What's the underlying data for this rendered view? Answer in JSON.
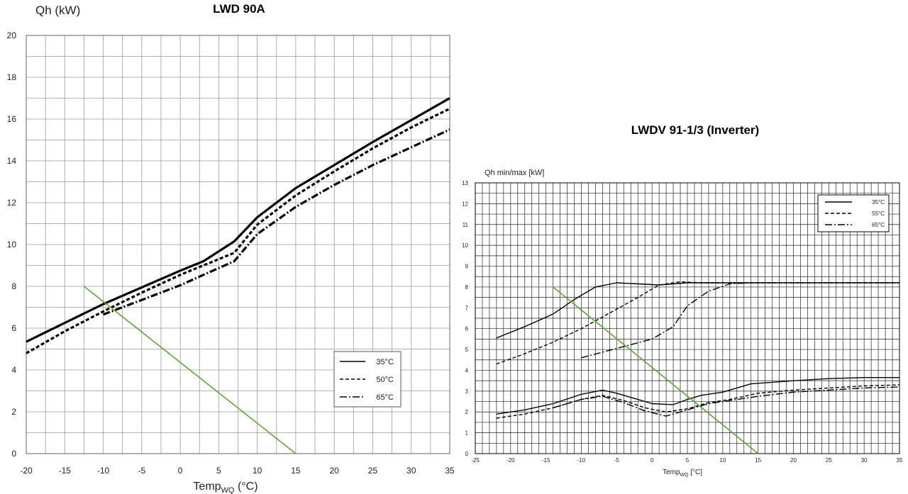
{
  "chart_data": [
    {
      "type": "line",
      "title": "LWD 90A",
      "ylabel": "Qh (kW)",
      "xlabel": "Temp",
      "xlabel_sub": "WQ",
      "xlabel_unit": "(°C)",
      "xlim": [
        -20,
        35
      ],
      "ylim": [
        0,
        20
      ],
      "xticks": [
        -20,
        -15,
        -10,
        -5,
        0,
        5,
        10,
        15,
        20,
        25,
        30,
        35
      ],
      "yticks": [
        0,
        2,
        4,
        6,
        8,
        10,
        12,
        14,
        16,
        18,
        20
      ],
      "grid": true,
      "legend_position": "bottom-right",
      "series": [
        {
          "name": "35°C",
          "style": "solid",
          "x": [
            -20,
            -15,
            -10,
            -5,
            0,
            3,
            7,
            10,
            15,
            20,
            25,
            30,
            35
          ],
          "y": [
            5.35,
            6.25,
            7.15,
            7.95,
            8.75,
            9.2,
            10.15,
            11.3,
            12.7,
            13.8,
            14.9,
            15.95,
            17.0
          ]
        },
        {
          "name": "50°C",
          "style": "dashed",
          "x": [
            -20,
            -15,
            -10,
            -5,
            0,
            3,
            7,
            10,
            15,
            20,
            25,
            30,
            35
          ],
          "y": [
            4.8,
            5.85,
            6.8,
            7.7,
            8.55,
            9.0,
            9.6,
            10.95,
            12.35,
            13.5,
            14.6,
            15.6,
            16.5
          ]
        },
        {
          "name": "65°C",
          "style": "dashdot",
          "x": [
            -10,
            -5,
            0,
            3,
            7,
            10,
            15,
            20,
            25,
            30,
            35
          ],
          "y": [
            6.65,
            7.35,
            8.05,
            8.55,
            9.2,
            10.5,
            11.8,
            12.85,
            13.8,
            14.65,
            15.5
          ]
        },
        {
          "name": "",
          "style": "green",
          "x": [
            -12.5,
            15
          ],
          "y": [
            8.0,
            0
          ]
        }
      ]
    },
    {
      "type": "line",
      "title": "LWDV 91-1/3 (Inverter)",
      "ylabel": "Qh min/max [kW]",
      "xlabel": "Temp",
      "xlabel_sub": "WQ",
      "xlabel_unit": "[°C]",
      "xlim": [
        -25,
        35
      ],
      "ylim": [
        0,
        13
      ],
      "xticks": [
        -25,
        -20,
        -15,
        -10,
        -5,
        0,
        5,
        10,
        15,
        20,
        25,
        30,
        35
      ],
      "yticks": [
        0,
        1,
        2,
        3,
        4,
        5,
        6,
        7,
        8,
        9,
        10,
        11,
        12,
        13
      ],
      "grid": true,
      "legend_position": "top-right",
      "legend": [
        "35°C",
        "55°C",
        "65°C"
      ],
      "series": [
        {
          "name": "35°C",
          "style": "solid",
          "group": "max",
          "x": [
            -22,
            -18,
            -14,
            -11,
            -8,
            -5,
            -2,
            1,
            5,
            10,
            15,
            20,
            25,
            30,
            35
          ],
          "y": [
            5.55,
            6.1,
            6.7,
            7.4,
            8.0,
            8.2,
            8.15,
            8.1,
            8.2,
            8.2,
            8.2,
            8.2,
            8.2,
            8.2,
            8.2
          ]
        },
        {
          "name": "55°C",
          "style": "dashed",
          "group": "max",
          "x": [
            -22,
            -18,
            -14,
            -10,
            -6,
            -2,
            1,
            4,
            7,
            10,
            35
          ],
          "y": [
            4.3,
            4.8,
            5.35,
            6.0,
            6.75,
            7.5,
            8.1,
            8.25,
            8.2,
            8.2,
            8.2
          ]
        },
        {
          "name": "65°C",
          "style": "dashdot",
          "group": "max",
          "x": [
            -10,
            -5,
            0,
            3,
            5,
            8,
            11,
            14
          ],
          "y": [
            4.6,
            5.05,
            5.5,
            6.1,
            7.1,
            7.8,
            8.15,
            8.2
          ]
        },
        {
          "name": "35°C",
          "style": "solid",
          "group": "min",
          "x": [
            -22,
            -18,
            -14,
            -10,
            -7,
            -5,
            -2,
            0,
            3,
            5,
            7,
            10,
            14,
            20,
            25,
            30,
            35
          ],
          "y": [
            1.9,
            2.1,
            2.4,
            2.85,
            3.05,
            2.9,
            2.6,
            2.4,
            2.35,
            2.6,
            2.8,
            2.95,
            3.35,
            3.5,
            3.6,
            3.65,
            3.65
          ]
        },
        {
          "name": "55°C",
          "style": "dashed",
          "group": "min",
          "x": [
            -22,
            -18,
            -14,
            -10,
            -7,
            -4,
            -1,
            2,
            5,
            8,
            11,
            15,
            20,
            25,
            30,
            35
          ],
          "y": [
            1.7,
            1.9,
            2.2,
            2.6,
            2.8,
            2.55,
            2.2,
            2.0,
            2.15,
            2.45,
            2.6,
            2.9,
            3.05,
            3.15,
            3.25,
            3.3
          ]
        },
        {
          "name": "65°C",
          "style": "dashdot",
          "group": "min",
          "x": [
            -14,
            -10,
            -7,
            -4,
            -1,
            2,
            5,
            8,
            11,
            15,
            20,
            25,
            30,
            35
          ],
          "y": [
            2.2,
            2.6,
            2.75,
            2.45,
            2.05,
            1.8,
            2.1,
            2.4,
            2.55,
            2.75,
            2.95,
            3.05,
            3.15,
            3.2
          ]
        },
        {
          "name": "",
          "style": "green",
          "group": "line",
          "x": [
            -14,
            15
          ],
          "y": [
            8.0,
            0
          ]
        }
      ]
    }
  ]
}
